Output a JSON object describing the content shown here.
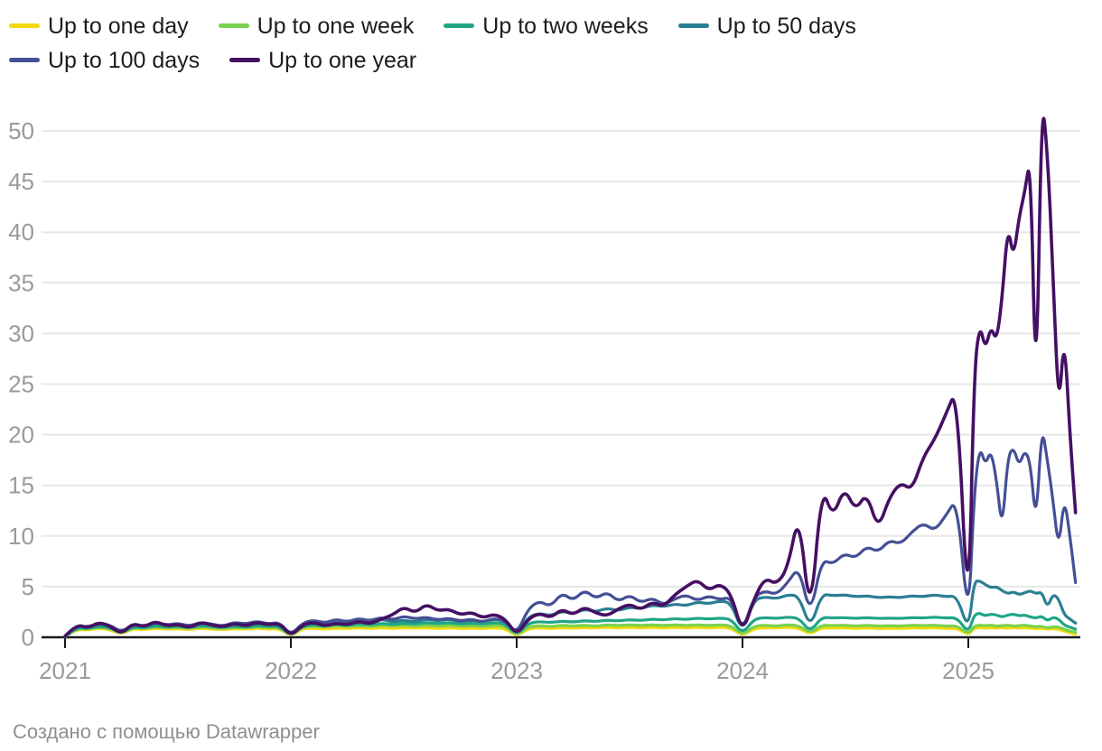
{
  "footer": {
    "credit": "Создано с помощью Datawrapper"
  },
  "chart_data": {
    "type": "line",
    "title": "",
    "xlabel": "",
    "ylabel": "",
    "legend_position": "top",
    "grid": true,
    "ylim": [
      0,
      55
    ],
    "xlim": [
      2021,
      2025.5
    ],
    "y_ticks": [
      0,
      5,
      10,
      15,
      20,
      25,
      30,
      35,
      40,
      45,
      50
    ],
    "x_ticks": [
      2021,
      2022,
      2023,
      2024,
      2025
    ],
    "style": {
      "grid_color": "#e7e7e7",
      "axis_color": "#1a1a1a",
      "tick_label_color": "#9a9a9a",
      "legend_text_color": "#1c1c1c",
      "footer_text_color": "#8f8f8f"
    },
    "x": [
      2021.0,
      2021.05,
      2021.1,
      2021.15,
      2021.2,
      2021.25,
      2021.3,
      2021.35,
      2021.4,
      2021.45,
      2021.5,
      2021.55,
      2021.6,
      2021.65,
      2021.7,
      2021.75,
      2021.8,
      2021.85,
      2021.9,
      2021.95,
      2022.0,
      2022.05,
      2022.1,
      2022.15,
      2022.2,
      2022.25,
      2022.3,
      2022.35,
      2022.4,
      2022.45,
      2022.5,
      2022.55,
      2022.6,
      2022.65,
      2022.7,
      2022.75,
      2022.8,
      2022.85,
      2022.9,
      2022.95,
      2023.0,
      2023.05,
      2023.1,
      2023.15,
      2023.2,
      2023.25,
      2023.3,
      2023.35,
      2023.4,
      2023.45,
      2023.5,
      2023.55,
      2023.6,
      2023.65,
      2023.7,
      2023.75,
      2023.8,
      2023.85,
      2023.9,
      2023.95,
      2024.0,
      2024.05,
      2024.1,
      2024.15,
      2024.2,
      2024.25,
      2024.3,
      2024.35,
      2024.4,
      2024.45,
      2024.5,
      2024.55,
      2024.6,
      2024.65,
      2024.7,
      2024.75,
      2024.8,
      2024.85,
      2024.9,
      2024.95,
      2025.0,
      2025.025,
      2025.05,
      2025.075,
      2025.1,
      2025.125,
      2025.15,
      2025.175,
      2025.2,
      2025.225,
      2025.25,
      2025.275,
      2025.3,
      2025.325,
      2025.35,
      2025.375,
      2025.4,
      2025.425,
      2025.45,
      2025.475
    ],
    "series": [
      {
        "id": "one-day",
        "name": "Up to one day",
        "color": "#f2d90e",
        "values": [
          0.05,
          0.8,
          0.7,
          0.9,
          0.75,
          0.3,
          0.85,
          0.75,
          0.9,
          0.8,
          0.85,
          0.75,
          0.9,
          0.8,
          0.75,
          0.85,
          0.8,
          0.9,
          0.8,
          0.85,
          0.1,
          0.85,
          0.9,
          0.8,
          0.9,
          0.85,
          0.95,
          0.85,
          0.95,
          0.85,
          0.95,
          0.9,
          0.95,
          0.85,
          0.95,
          0.85,
          0.9,
          0.85,
          0.95,
          0.85,
          0.1,
          0.85,
          0.95,
          0.85,
          0.95,
          0.9,
          0.95,
          0.9,
          1.0,
          0.9,
          1.0,
          0.9,
          1.0,
          0.9,
          1.0,
          0.9,
          1.0,
          0.9,
          1.0,
          0.9,
          0.15,
          0.85,
          0.95,
          0.9,
          1.0,
          0.9,
          0.3,
          0.95,
          0.9,
          0.95,
          0.85,
          0.95,
          0.85,
          0.9,
          0.85,
          0.95,
          0.9,
          0.95,
          0.85,
          0.9,
          0.2,
          0.9,
          0.95,
          0.9,
          0.95,
          0.9,
          0.95,
          0.9,
          0.95,
          0.9,
          0.95,
          0.9,
          0.85,
          0.9,
          0.8,
          0.85,
          0.8,
          0.6,
          0.45,
          0.3
        ]
      },
      {
        "id": "one-week",
        "name": "Up to one week",
        "color": "#7bd24e",
        "values": [
          0.05,
          0.9,
          0.8,
          1.0,
          0.85,
          0.35,
          0.95,
          0.85,
          1.05,
          0.9,
          1.0,
          0.85,
          1.05,
          0.95,
          0.85,
          1.0,
          0.9,
          1.05,
          0.95,
          1.0,
          0.1,
          1.0,
          1.1,
          1.0,
          1.15,
          1.05,
          1.15,
          1.05,
          1.2,
          1.1,
          1.2,
          1.1,
          1.2,
          1.1,
          1.2,
          1.1,
          1.15,
          1.05,
          1.2,
          1.1,
          0.15,
          1.05,
          1.15,
          1.05,
          1.2,
          1.1,
          1.2,
          1.1,
          1.25,
          1.15,
          1.25,
          1.15,
          1.25,
          1.15,
          1.25,
          1.15,
          1.25,
          1.15,
          1.25,
          1.15,
          0.2,
          1.1,
          1.2,
          1.1,
          1.25,
          1.15,
          0.4,
          1.2,
          1.15,
          1.2,
          1.1,
          1.2,
          1.1,
          1.15,
          1.1,
          1.2,
          1.15,
          1.2,
          1.1,
          1.15,
          0.3,
          1.1,
          1.2,
          1.15,
          1.2,
          1.1,
          1.15,
          1.2,
          1.1,
          1.15,
          1.2,
          1.1,
          1.05,
          1.1,
          0.9,
          1.05,
          1.0,
          0.8,
          0.6,
          0.5
        ]
      },
      {
        "id": "two-weeks",
        "name": "Up to two weeks",
        "color": "#21a585",
        "values": [
          0.05,
          1.0,
          0.85,
          1.1,
          0.95,
          0.4,
          1.05,
          0.9,
          1.15,
          1.0,
          1.1,
          0.95,
          1.15,
          1.05,
          0.95,
          1.1,
          1.0,
          1.15,
          1.05,
          1.1,
          0.15,
          1.1,
          1.25,
          1.1,
          1.3,
          1.15,
          1.35,
          1.2,
          1.4,
          1.25,
          1.4,
          1.3,
          1.45,
          1.35,
          1.45,
          1.3,
          1.4,
          1.3,
          1.45,
          1.35,
          0.2,
          1.4,
          1.55,
          1.45,
          1.6,
          1.5,
          1.65,
          1.55,
          1.7,
          1.6,
          1.75,
          1.65,
          1.8,
          1.7,
          1.85,
          1.75,
          1.9,
          1.8,
          1.9,
          1.8,
          0.3,
          1.8,
          1.95,
          1.85,
          2.0,
          1.9,
          0.5,
          2.0,
          1.9,
          1.95,
          1.85,
          1.95,
          1.85,
          1.9,
          1.85,
          1.95,
          1.9,
          2.0,
          1.9,
          1.95,
          0.4,
          2.2,
          2.4,
          2.1,
          2.3,
          2.2,
          2.0,
          2.2,
          2.3,
          2.1,
          2.2,
          2.0,
          1.9,
          2.1,
          1.6,
          2.0,
          1.8,
          1.2,
          1.0,
          0.8
        ]
      },
      {
        "id": "50-days",
        "name": "Up to 50 days",
        "color": "#2b7e92",
        "values": [
          0.1,
          1.1,
          0.9,
          1.3,
          1.1,
          0.5,
          1.2,
          1.0,
          1.4,
          1.1,
          1.3,
          1.0,
          1.4,
          1.2,
          1.0,
          1.3,
          1.1,
          1.4,
          1.2,
          1.3,
          0.2,
          1.3,
          1.5,
          1.3,
          1.6,
          1.4,
          1.7,
          1.5,
          1.8,
          1.5,
          1.7,
          1.5,
          1.8,
          1.6,
          1.8,
          1.5,
          1.7,
          1.5,
          1.8,
          1.6,
          0.3,
          2.0,
          2.4,
          2.1,
          2.6,
          2.3,
          2.8,
          2.5,
          2.9,
          2.6,
          3.0,
          2.8,
          3.2,
          3.0,
          3.3,
          3.1,
          3.5,
          3.3,
          3.6,
          3.4,
          0.4,
          3.7,
          4.0,
          3.8,
          4.2,
          4.1,
          0.8,
          4.3,
          4.1,
          4.2,
          4.0,
          4.1,
          3.9,
          4.0,
          3.9,
          4.1,
          4.0,
          4.2,
          4.0,
          4.1,
          0.6,
          5.5,
          5.6,
          5.2,
          4.9,
          5.0,
          4.6,
          4.3,
          4.5,
          4.2,
          4.4,
          4.6,
          4.3,
          4.5,
          2.9,
          4.3,
          3.8,
          2.2,
          1.8,
          1.4
        ]
      },
      {
        "id": "100-days",
        "name": "Up to 100 days",
        "color": "#454f96",
        "values": [
          0.1,
          1.2,
          1.0,
          1.4,
          1.2,
          0.5,
          1.3,
          1.1,
          1.5,
          1.2,
          1.4,
          1.1,
          1.5,
          1.3,
          1.1,
          1.5,
          1.3,
          1.6,
          1.3,
          1.5,
          0.2,
          1.4,
          1.7,
          1.4,
          1.8,
          1.5,
          1.9,
          1.6,
          2.0,
          1.7,
          2.1,
          1.8,
          2.0,
          1.7,
          1.9,
          1.6,
          1.8,
          1.5,
          1.9,
          1.6,
          0.3,
          2.8,
          3.6,
          3.0,
          4.4,
          3.6,
          4.7,
          3.8,
          4.5,
          3.5,
          4.2,
          3.4,
          3.9,
          3.2,
          3.8,
          4.2,
          3.6,
          4.1,
          3.7,
          4.0,
          0.5,
          4.0,
          4.6,
          4.2,
          5.4,
          7.0,
          2.0,
          7.7,
          7.2,
          8.3,
          7.8,
          9.0,
          8.4,
          9.6,
          9.2,
          10.4,
          11.3,
          10.5,
          12.0,
          13.8,
          1.0,
          14.0,
          18.9,
          17.0,
          18.5,
          15.5,
          10.5,
          17.8,
          18.8,
          16.9,
          18.5,
          17.2,
          11.0,
          21.0,
          17.5,
          13.5,
          8.6,
          13.9,
          10.0,
          5.4
        ]
      },
      {
        "id": "one-year",
        "name": "Up to one year",
        "color": "#451063",
        "values": [
          0.1,
          1.3,
          0.9,
          1.5,
          1.1,
          0.3,
          1.4,
          1.0,
          1.6,
          1.1,
          1.3,
          0.9,
          1.5,
          1.2,
          1.0,
          1.4,
          1.1,
          1.5,
          1.2,
          1.4,
          0.1,
          1.2,
          1.5,
          1.1,
          1.4,
          1.2,
          1.6,
          1.3,
          1.8,
          2.2,
          3.0,
          2.4,
          3.3,
          2.6,
          2.8,
          2.2,
          2.5,
          1.9,
          2.3,
          1.8,
          0.2,
          1.8,
          2.4,
          1.9,
          2.8,
          2.2,
          3.0,
          2.4,
          2.1,
          2.8,
          3.3,
          2.7,
          3.5,
          3.0,
          4.2,
          5.0,
          5.7,
          4.6,
          5.3,
          4.3,
          0.3,
          3.8,
          5.9,
          5.2,
          6.8,
          12.5,
          1.4,
          15.0,
          11.8,
          14.8,
          12.5,
          14.3,
          10.6,
          13.8,
          15.3,
          14.5,
          17.8,
          19.5,
          22.0,
          24.7,
          0.4,
          26.0,
          31.0,
          28.4,
          30.7,
          29.2,
          33.5,
          40.7,
          37.4,
          41.5,
          44.0,
          47.6,
          22.3,
          53.6,
          48.0,
          36.0,
          22.0,
          30.2,
          20.0,
          12.3
        ]
      }
    ]
  }
}
